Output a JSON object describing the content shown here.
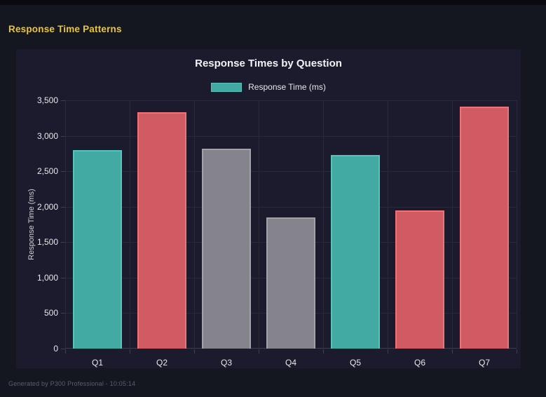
{
  "window": {
    "heading": "Response Time Patterns",
    "footer": "Generated by P300 Professional - 10:05:14"
  },
  "colors": {
    "page_bg": "#151720",
    "top_strip": "#0a0a10",
    "panel_bg": "#1c1b2d",
    "heading_yellow": "#edc62f",
    "gridline": "#262a3b",
    "axis_text": "#e8e8ea",
    "footer_text": "#5a5f6e",
    "teal_fill": "#43a9a3",
    "teal_border": "#54c4bc",
    "red_fill": "#d15b62",
    "red_border": "#ef7276",
    "gray_fill": "#85838b",
    "gray_border": "#a3a2a8"
  },
  "chart_data": {
    "type": "bar",
    "title": "Response Times by Question",
    "legend": [
      {
        "label": "Response Time (ms)",
        "color_key": "teal"
      }
    ],
    "legend_position": "top",
    "categories": [
      "Q1",
      "Q2",
      "Q3",
      "Q4",
      "Q5",
      "Q6",
      "Q7"
    ],
    "values": [
      2800,
      3330,
      2820,
      1850,
      2730,
      1950,
      3410
    ],
    "bar_color_keys": [
      "teal",
      "red",
      "gray",
      "gray",
      "teal",
      "red",
      "red"
    ],
    "xlabel": "",
    "ylabel": "Response Time (ms)",
    "ylim": [
      0,
      3500
    ],
    "ytick_step": 500,
    "ytick_labels": [
      "0",
      "500",
      "1,000",
      "1,500",
      "2,000",
      "2,500",
      "3,000",
      "3,500"
    ],
    "grid": true
  }
}
